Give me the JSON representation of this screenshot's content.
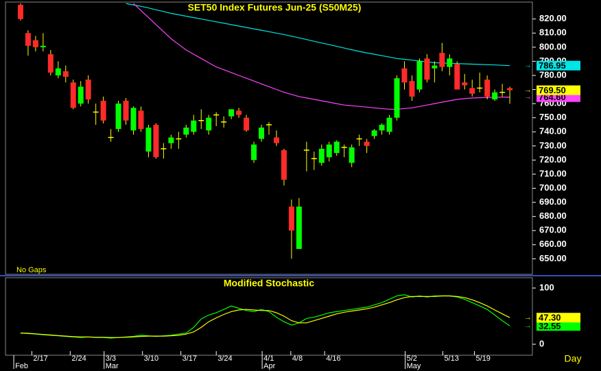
{
  "chart_data": [
    {
      "type": "candlestick",
      "title": "SET50  Index  Futures  Jun-25  (S50M25)",
      "annotation": "No Gaps",
      "open": [
        830,
        810,
        805,
        800,
        795,
        780,
        783,
        775,
        760,
        777,
        754,
        762,
        736,
        742,
        762,
        741,
        755,
        726,
        745,
        728,
        732,
        735,
        738,
        740,
        748,
        741,
        752,
        747,
        751,
        755,
        750,
        720,
        735,
        745,
        736,
        727,
        687,
        657,
        727,
        721,
        718,
        722,
        725,
        729,
        718,
        735,
        733,
        737,
        741,
        740,
        750,
        785,
        776,
        770,
        792,
        785,
        796,
        786,
        788,
        775,
        771,
        771,
        777,
        763,
        768,
        771
      ],
      "high": [
        831,
        812,
        808,
        810,
        798,
        790,
        787,
        777,
        776,
        780,
        760,
        765,
        742,
        762,
        764,
        758,
        758,
        745,
        746,
        732,
        738,
        740,
        745,
        752,
        756,
        752,
        754,
        751,
        756,
        757,
        752,
        733,
        745,
        747,
        741,
        728,
        692,
        693,
        733,
        726,
        731,
        733,
        734,
        731,
        731,
        738,
        735,
        742,
        746,
        752,
        780,
        790,
        780,
        792,
        795,
        790,
        803,
        795,
        790,
        781,
        777,
        782,
        780,
        770,
        774,
        772
      ],
      "low": [
        819,
        794,
        797,
        797,
        780,
        778,
        775,
        756,
        758,
        760,
        745,
        746,
        733,
        740,
        745,
        738,
        740,
        722,
        721,
        721,
        728,
        728,
        736,
        738,
        742,
        738,
        744,
        743,
        749,
        750,
        740,
        718,
        733,
        738,
        730,
        702,
        650,
        657,
        712,
        713,
        716,
        719,
        723,
        722,
        715,
        730,
        725,
        735,
        738,
        738,
        748,
        770,
        762,
        768,
        775,
        775,
        783,
        780,
        770,
        770,
        765,
        768,
        763,
        762,
        765,
        760
      ],
      "close": [
        820,
        801,
        800,
        801,
        782,
        785,
        779,
        757,
        772,
        763,
        754,
        748,
        736,
        760,
        748,
        757,
        742,
        743,
        722,
        728,
        736,
        735,
        743,
        748,
        748,
        750,
        752,
        747,
        756,
        752,
        741,
        731,
        743,
        745,
        732,
        706,
        670,
        687,
        727,
        721,
        728,
        731,
        733,
        729,
        729,
        735,
        730,
        741,
        745,
        750,
        778,
        775,
        765,
        790,
        777,
        787,
        786,
        792,
        770,
        773,
        767,
        771,
        765,
        768,
        768,
        769.5
      ],
      "last_value_label": "769.50",
      "up_color": "#00ff00",
      "down_color": "#ff2a2a",
      "doji_color": "#ffff00",
      "label_color": "#ffff00",
      "overlays": [
        {
          "color": "#00e5e5",
          "last_value_label": "786.95",
          "values": [
            null,
            null,
            null,
            null,
            null,
            null,
            null,
            null,
            null,
            null,
            null,
            null,
            null,
            null,
            831,
            830,
            829,
            827.8,
            826.5,
            825.3,
            824,
            823,
            822,
            821,
            820,
            819,
            818,
            817,
            816,
            815,
            814,
            813,
            812,
            811,
            810,
            809,
            807.8,
            806.6,
            805.4,
            804.2,
            803,
            801.8,
            800.6,
            799.4,
            798.2,
            797,
            796,
            795,
            794,
            793,
            792,
            791.4,
            790.8,
            790.2,
            789.6,
            789,
            788.8,
            788.6,
            788.4,
            788.2,
            788,
            787.8,
            787.6,
            787.4,
            787.2,
            786.95
          ]
        },
        {
          "color": "#ff44ff",
          "last_value_label": "764.60",
          "values": [
            null,
            null,
            null,
            null,
            null,
            null,
            null,
            null,
            null,
            null,
            null,
            null,
            null,
            null,
            null,
            831,
            826,
            821,
            816,
            811,
            806,
            802,
            798,
            795,
            792,
            789,
            786,
            784,
            782,
            780,
            778,
            776,
            774,
            772,
            770,
            768,
            766.5,
            765,
            764,
            763,
            762,
            761,
            760,
            759,
            758.5,
            758,
            757.5,
            757,
            756.5,
            756,
            756,
            756.5,
            757,
            758,
            759,
            760,
            761,
            762,
            763,
            763.5,
            764,
            764.2,
            764.4,
            764.5,
            764.6,
            764.6
          ]
        }
      ],
      "xlim": [
        -2,
        68
      ],
      "ylim": [
        639,
        832
      ],
      "yticks": [
        {
          "value": 650,
          "label": "650.00"
        },
        {
          "value": 660,
          "label": "660.00"
        },
        {
          "value": 670,
          "label": "670.00"
        },
        {
          "value": 680,
          "label": "680.00"
        },
        {
          "value": 690,
          "label": "690.00"
        },
        {
          "value": 700,
          "label": "700.00"
        },
        {
          "value": 710,
          "label": "710.00"
        },
        {
          "value": 720,
          "label": "720.00"
        },
        {
          "value": 730,
          "label": "730.00"
        },
        {
          "value": 740,
          "label": "740.00"
        },
        {
          "value": 750,
          "label": "750.00"
        },
        {
          "value": 760,
          "label": "760.00"
        },
        {
          "value": 770,
          "label": "770.00"
        },
        {
          "value": 780,
          "label": "780.00"
        },
        {
          "value": 790,
          "label": "790.00"
        },
        {
          "value": 800,
          "label": "800.00"
        },
        {
          "value": 810,
          "label": "810.00"
        },
        {
          "value": 820,
          "label": "820.00"
        }
      ]
    },
    {
      "type": "line",
      "title": "Modified  Stochastic",
      "series": [
        {
          "color": "#00ff00",
          "last_value_label": "32.55",
          "values": [
            20,
            19,
            18,
            17,
            16,
            15,
            14,
            13,
            12,
            13,
            12,
            12,
            11,
            12,
            13,
            14,
            16,
            15,
            14,
            15,
            16,
            18,
            20,
            30,
            45,
            52,
            56,
            62,
            68,
            64,
            60,
            58,
            62,
            58,
            48,
            40,
            34,
            38,
            46,
            48,
            52,
            56,
            58,
            60,
            62,
            64,
            66,
            70,
            74,
            80,
            86,
            88,
            84,
            86,
            84,
            86,
            86,
            86,
            84,
            80,
            74,
            68,
            62,
            52,
            42,
            32.55
          ]
        },
        {
          "color": "#ffff00",
          "last_value_label": "47.30",
          "values": [
            20,
            19.5,
            18.5,
            17.5,
            16.5,
            15.5,
            14.5,
            13.5,
            13,
            13,
            12.5,
            12.5,
            12,
            12,
            12.5,
            13,
            14,
            14.5,
            14.5,
            14.5,
            15,
            16,
            18,
            22,
            30,
            40,
            47,
            53,
            58,
            61,
            62,
            61,
            60,
            60,
            56,
            50,
            42,
            38,
            38,
            42,
            46,
            50,
            54,
            57,
            59,
            61,
            63,
            66,
            70,
            74,
            79,
            83,
            85,
            85,
            85,
            85,
            86,
            86,
            85,
            83,
            79,
            74,
            68,
            61,
            54,
            47.3
          ]
        }
      ],
      "xlim": [
        -2,
        68
      ],
      "ylim": [
        -19.5,
        118.3
      ],
      "yticks": [
        0,
        100
      ],
      "xticks": [
        {
          "value": 1.5,
          "label": "2/17"
        },
        {
          "value": 6.6,
          "label": "2/24"
        },
        {
          "value": 11.1,
          "label": "3/3"
        },
        {
          "value": 16.2,
          "label": "3/10"
        },
        {
          "value": 21.3,
          "label": "3/17"
        },
        {
          "value": 26,
          "label": "3/24"
        },
        {
          "value": 32.1,
          "label": "4/1"
        },
        {
          "value": 35.9,
          "label": "4/8"
        },
        {
          "value": 40.4,
          "label": "4/16"
        },
        {
          "value": 51.1,
          "label": "5/2"
        },
        {
          "value": 56.1,
          "label": "5/13"
        },
        {
          "value": 60.3,
          "label": "5/19"
        }
      ],
      "month_ticks": [
        {
          "value": -0.9,
          "label": "Feb"
        },
        {
          "value": 11.1,
          "label": "Mar"
        },
        {
          "value": 32.1,
          "label": "Apr"
        },
        {
          "value": 51.1,
          "label": "May"
        }
      ],
      "x_unit_label": "Day"
    }
  ]
}
